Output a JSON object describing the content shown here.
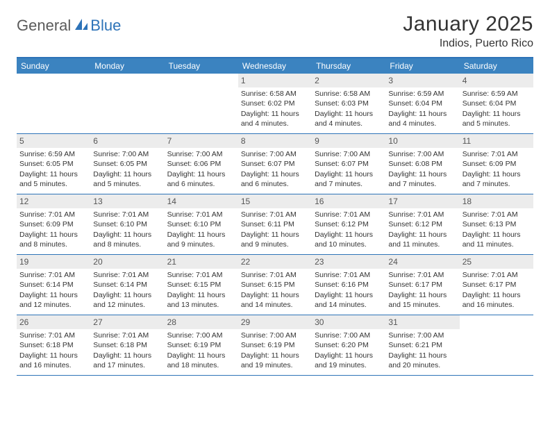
{
  "logo": {
    "text1": "General",
    "text2": "Blue"
  },
  "title": "January 2025",
  "subtitle": "Indios, Puerto Rico",
  "colors": {
    "headerBar": "#3b83c0",
    "ruleLine": "#2d73b8",
    "dayNumBg": "#ececec",
    "textDark": "#333333",
    "textDayNum": "#555555",
    "logoGray": "#5a5a5a"
  },
  "weekdays": [
    "Sunday",
    "Monday",
    "Tuesday",
    "Wednesday",
    "Thursday",
    "Friday",
    "Saturday"
  ],
  "weeks": [
    [
      {
        "empty": true
      },
      {
        "empty": true
      },
      {
        "empty": true
      },
      {
        "day": "1",
        "sunrise": "Sunrise: 6:58 AM",
        "sunset": "Sunset: 6:02 PM",
        "dl1": "Daylight: 11 hours",
        "dl2": "and 4 minutes."
      },
      {
        "day": "2",
        "sunrise": "Sunrise: 6:58 AM",
        "sunset": "Sunset: 6:03 PM",
        "dl1": "Daylight: 11 hours",
        "dl2": "and 4 minutes."
      },
      {
        "day": "3",
        "sunrise": "Sunrise: 6:59 AM",
        "sunset": "Sunset: 6:04 PM",
        "dl1": "Daylight: 11 hours",
        "dl2": "and 4 minutes."
      },
      {
        "day": "4",
        "sunrise": "Sunrise: 6:59 AM",
        "sunset": "Sunset: 6:04 PM",
        "dl1": "Daylight: 11 hours",
        "dl2": "and 5 minutes."
      }
    ],
    [
      {
        "day": "5",
        "sunrise": "Sunrise: 6:59 AM",
        "sunset": "Sunset: 6:05 PM",
        "dl1": "Daylight: 11 hours",
        "dl2": "and 5 minutes."
      },
      {
        "day": "6",
        "sunrise": "Sunrise: 7:00 AM",
        "sunset": "Sunset: 6:05 PM",
        "dl1": "Daylight: 11 hours",
        "dl2": "and 5 minutes."
      },
      {
        "day": "7",
        "sunrise": "Sunrise: 7:00 AM",
        "sunset": "Sunset: 6:06 PM",
        "dl1": "Daylight: 11 hours",
        "dl2": "and 6 minutes."
      },
      {
        "day": "8",
        "sunrise": "Sunrise: 7:00 AM",
        "sunset": "Sunset: 6:07 PM",
        "dl1": "Daylight: 11 hours",
        "dl2": "and 6 minutes."
      },
      {
        "day": "9",
        "sunrise": "Sunrise: 7:00 AM",
        "sunset": "Sunset: 6:07 PM",
        "dl1": "Daylight: 11 hours",
        "dl2": "and 7 minutes."
      },
      {
        "day": "10",
        "sunrise": "Sunrise: 7:00 AM",
        "sunset": "Sunset: 6:08 PM",
        "dl1": "Daylight: 11 hours",
        "dl2": "and 7 minutes."
      },
      {
        "day": "11",
        "sunrise": "Sunrise: 7:01 AM",
        "sunset": "Sunset: 6:09 PM",
        "dl1": "Daylight: 11 hours",
        "dl2": "and 7 minutes."
      }
    ],
    [
      {
        "day": "12",
        "sunrise": "Sunrise: 7:01 AM",
        "sunset": "Sunset: 6:09 PM",
        "dl1": "Daylight: 11 hours",
        "dl2": "and 8 minutes."
      },
      {
        "day": "13",
        "sunrise": "Sunrise: 7:01 AM",
        "sunset": "Sunset: 6:10 PM",
        "dl1": "Daylight: 11 hours",
        "dl2": "and 8 minutes."
      },
      {
        "day": "14",
        "sunrise": "Sunrise: 7:01 AM",
        "sunset": "Sunset: 6:10 PM",
        "dl1": "Daylight: 11 hours",
        "dl2": "and 9 minutes."
      },
      {
        "day": "15",
        "sunrise": "Sunrise: 7:01 AM",
        "sunset": "Sunset: 6:11 PM",
        "dl1": "Daylight: 11 hours",
        "dl2": "and 9 minutes."
      },
      {
        "day": "16",
        "sunrise": "Sunrise: 7:01 AM",
        "sunset": "Sunset: 6:12 PM",
        "dl1": "Daylight: 11 hours",
        "dl2": "and 10 minutes."
      },
      {
        "day": "17",
        "sunrise": "Sunrise: 7:01 AM",
        "sunset": "Sunset: 6:12 PM",
        "dl1": "Daylight: 11 hours",
        "dl2": "and 11 minutes."
      },
      {
        "day": "18",
        "sunrise": "Sunrise: 7:01 AM",
        "sunset": "Sunset: 6:13 PM",
        "dl1": "Daylight: 11 hours",
        "dl2": "and 11 minutes."
      }
    ],
    [
      {
        "day": "19",
        "sunrise": "Sunrise: 7:01 AM",
        "sunset": "Sunset: 6:14 PM",
        "dl1": "Daylight: 11 hours",
        "dl2": "and 12 minutes."
      },
      {
        "day": "20",
        "sunrise": "Sunrise: 7:01 AM",
        "sunset": "Sunset: 6:14 PM",
        "dl1": "Daylight: 11 hours",
        "dl2": "and 12 minutes."
      },
      {
        "day": "21",
        "sunrise": "Sunrise: 7:01 AM",
        "sunset": "Sunset: 6:15 PM",
        "dl1": "Daylight: 11 hours",
        "dl2": "and 13 minutes."
      },
      {
        "day": "22",
        "sunrise": "Sunrise: 7:01 AM",
        "sunset": "Sunset: 6:15 PM",
        "dl1": "Daylight: 11 hours",
        "dl2": "and 14 minutes."
      },
      {
        "day": "23",
        "sunrise": "Sunrise: 7:01 AM",
        "sunset": "Sunset: 6:16 PM",
        "dl1": "Daylight: 11 hours",
        "dl2": "and 14 minutes."
      },
      {
        "day": "24",
        "sunrise": "Sunrise: 7:01 AM",
        "sunset": "Sunset: 6:17 PM",
        "dl1": "Daylight: 11 hours",
        "dl2": "and 15 minutes."
      },
      {
        "day": "25",
        "sunrise": "Sunrise: 7:01 AM",
        "sunset": "Sunset: 6:17 PM",
        "dl1": "Daylight: 11 hours",
        "dl2": "and 16 minutes."
      }
    ],
    [
      {
        "day": "26",
        "sunrise": "Sunrise: 7:01 AM",
        "sunset": "Sunset: 6:18 PM",
        "dl1": "Daylight: 11 hours",
        "dl2": "and 16 minutes."
      },
      {
        "day": "27",
        "sunrise": "Sunrise: 7:01 AM",
        "sunset": "Sunset: 6:18 PM",
        "dl1": "Daylight: 11 hours",
        "dl2": "and 17 minutes."
      },
      {
        "day": "28",
        "sunrise": "Sunrise: 7:00 AM",
        "sunset": "Sunset: 6:19 PM",
        "dl1": "Daylight: 11 hours",
        "dl2": "and 18 minutes."
      },
      {
        "day": "29",
        "sunrise": "Sunrise: 7:00 AM",
        "sunset": "Sunset: 6:19 PM",
        "dl1": "Daylight: 11 hours",
        "dl2": "and 19 minutes."
      },
      {
        "day": "30",
        "sunrise": "Sunrise: 7:00 AM",
        "sunset": "Sunset: 6:20 PM",
        "dl1": "Daylight: 11 hours",
        "dl2": "and 19 minutes."
      },
      {
        "day": "31",
        "sunrise": "Sunrise: 7:00 AM",
        "sunset": "Sunset: 6:21 PM",
        "dl1": "Daylight: 11 hours",
        "dl2": "and 20 minutes."
      },
      {
        "empty": true
      }
    ]
  ]
}
